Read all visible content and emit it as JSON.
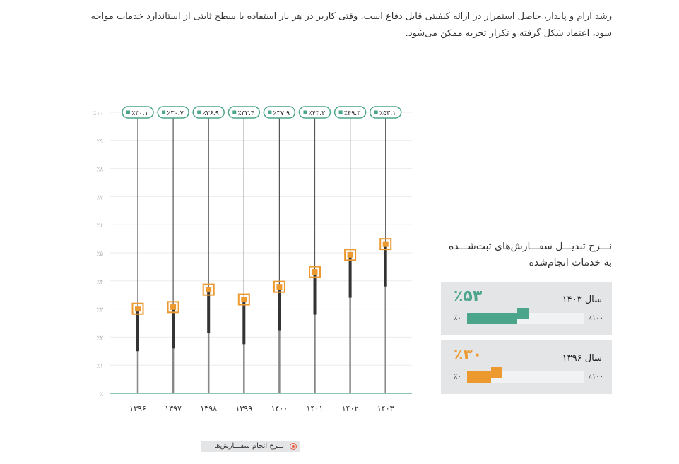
{
  "intro": "رشد آرام و پایدار، حاصل استمرار در ارائه کیفیتی قابل دفاع است. وقتی کاربر در هر بار استفاده با سطح ثابتی از استاندارد خدمات مواجه شود، اعتماد شکل گرفته و تکرار تجربه ممکن می‌شود.",
  "colors": {
    "green": "#4aa58b",
    "orange": "#ec9a30",
    "dark": "#333333",
    "grid": "#e8e8e8"
  },
  "chart_data": {
    "type": "line-range",
    "categories": [
      "۱۳۹۶",
      "۱۳۹۷",
      "۱۳۹۸",
      "۱۳۹۹",
      "۱۴۰۰",
      "۱۴۰۱",
      "۱۴۰۲",
      "۱۴۰۳"
    ],
    "yticks": [
      "٪۰",
      "٪۱۰",
      "٪۲۰",
      "٪۳۰",
      "٪۴۰",
      "٪۵۰",
      "٪۶۰",
      "٪۷۰",
      "٪۸۰",
      "٪۹۰",
      "٪۱۰۰"
    ],
    "ylim": [
      0,
      100
    ],
    "grid": true,
    "values": [
      30.1,
      30.7,
      36.9,
      33.4,
      37.9,
      43.2,
      49.3,
      53.1
    ],
    "value_labels": [
      "٪۳۰.۱",
      "٪۳۰.۷",
      "٪۳۶.۹",
      "٪۳۳.۴",
      "٪۳۷.۹",
      "٪۴۳.۲",
      "٪۴۹.۳",
      "٪۵۳.۱"
    ],
    "range_low": [
      15,
      16,
      21.5,
      17.5,
      22.5,
      28,
      34,
      38
    ],
    "legend": {
      "label": "نــرخ انجام سفـــارش‌ها",
      "position": "bottom"
    }
  },
  "side": {
    "title": "نـــرخ تبدیـــل سفـــارش‌های ثبت‌شـــده به خدمات انجام‌شده",
    "cards": [
      {
        "year": "سال ۱۴۰۳",
        "value": "٪۵۳",
        "percent": 53,
        "min": "٪۰",
        "max": "٪۱۰۰",
        "color": "#4aa58b"
      },
      {
        "year": "سال ۱۳۹۶",
        "value": "٪۳۰",
        "percent": 30,
        "min": "٪۰",
        "max": "٪۱۰۰",
        "color": "#ec9a30"
      }
    ]
  }
}
